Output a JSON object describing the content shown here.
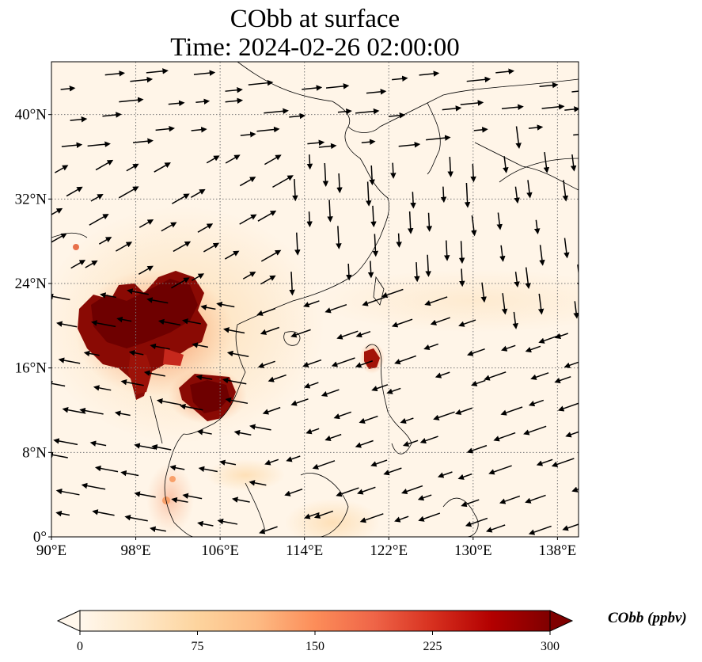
{
  "title": {
    "line1": "CObb at surface",
    "line2": "Time: 2024-02-26 02:00:00"
  },
  "map": {
    "region": "Southeast and East Asia",
    "lon_range": [
      90,
      140
    ],
    "lat_range": [
      0,
      45
    ],
    "lon_ticks": [
      90,
      98,
      106,
      114,
      122,
      130,
      138
    ],
    "lat_ticks": [
      0,
      8,
      16,
      24,
      32,
      40
    ],
    "lon_tick_labels": [
      "90°E",
      "98°E",
      "106°E",
      "114°E",
      "122°E",
      "130°E",
      "138°E"
    ],
    "lat_tick_labels": [
      "0°",
      "8°N",
      "16°N",
      "24°N",
      "32°N",
      "40°N"
    ],
    "gridlines": true,
    "field": "CObb",
    "overlay": "wind vectors",
    "high_concentration_areas": [
      "Myanmar-Laos-northern Thailand",
      "Cambodia",
      "northern Luzon"
    ]
  },
  "colorbar": {
    "ticks": [
      "0",
      "75",
      "150",
      "225",
      "300"
    ],
    "values": [
      0,
      75,
      150,
      225,
      300
    ],
    "unit_label": "CObb (ppbv)",
    "colormap": "OrRd",
    "extend": "both",
    "colors": [
      "#fff7ec",
      "#fee8c8",
      "#fdd49e",
      "#fdbb84",
      "#fc8d59",
      "#ef6548",
      "#d7301f",
      "#b30000",
      "#7f0000"
    ]
  }
}
